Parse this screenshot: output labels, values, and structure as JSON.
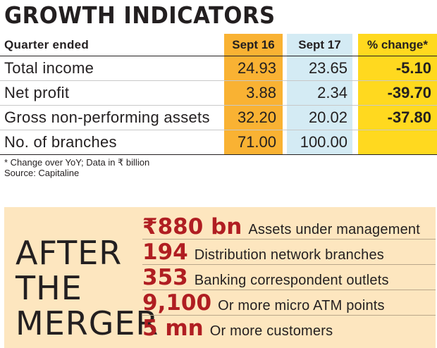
{
  "title": "GROWTH INDICATORS",
  "table": {
    "header": {
      "label": "Quarter ended",
      "col1": "Sept 16",
      "col2": "Sept 17",
      "col3": "% change*"
    },
    "rows": [
      {
        "label": "Total income",
        "sept16": "24.93",
        "sept17": "23.65",
        "change": "-5.10"
      },
      {
        "label": "Net profit",
        "sept16": "3.88",
        "sept17": "2.34",
        "change": "-39.70"
      },
      {
        "label": "Gross non-performing assets",
        "sept16": "32.20",
        "sept17": "20.02",
        "change": "-37.80"
      },
      {
        "label": "No. of branches",
        "sept16": "71.00",
        "sept17": "100.00",
        "change": ""
      }
    ]
  },
  "footnote": "* Change over YoY; Data in ₹ billion",
  "source": "Source: Capitaline",
  "merger": {
    "lines": [
      "AFTER",
      "THE",
      "MERGER"
    ],
    "items": [
      {
        "value": "₹880 bn",
        "desc": "Assets under management"
      },
      {
        "value": "194",
        "desc": "Distribution network branches"
      },
      {
        "value": "353",
        "desc": "Banking correspondent outlets"
      },
      {
        "value": "9,100",
        "desc": "Or more micro ATM points"
      },
      {
        "value": "5 mn",
        "desc": "Or more customers"
      }
    ]
  },
  "colors": {
    "sept16": "#f9b233",
    "sept17": "#d4ebf4",
    "change": "#ffd91f",
    "merger_bg": "#fde6bf",
    "accent": "#b01e22"
  }
}
